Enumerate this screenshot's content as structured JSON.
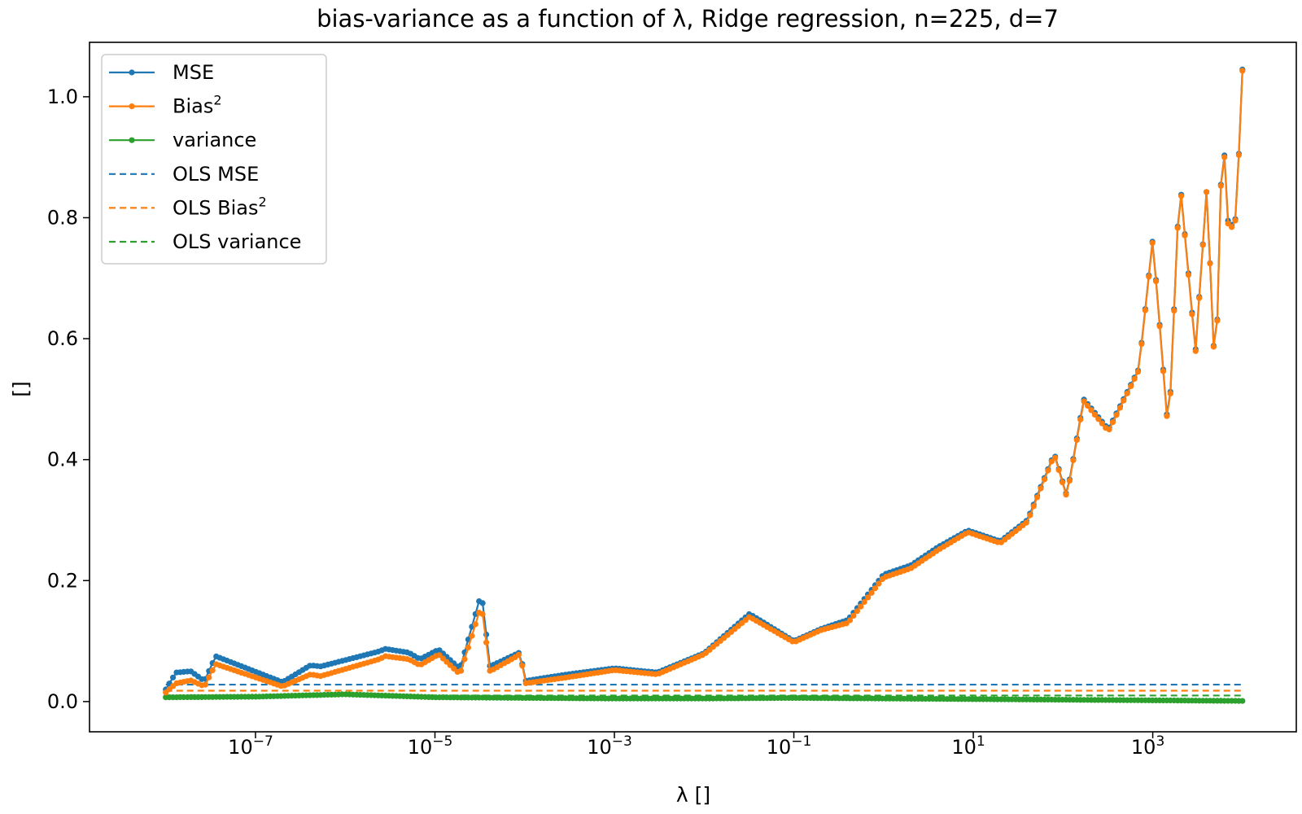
{
  "chart_data": {
    "type": "line",
    "title": "bias-variance as a function of λ, Ridge regression, n=225, d=7",
    "xlabel": "λ []",
    "ylabel": "[]",
    "xscale": "log",
    "xlim_exp": [
      -8.85,
      4.6
    ],
    "ylim": [
      -0.05,
      1.09
    ],
    "xticks": [
      {
        "base": "10",
        "exp": "−7",
        "value": 1e-07
      },
      {
        "base": "10",
        "exp": "−5",
        "value": 1e-05
      },
      {
        "base": "10",
        "exp": "−3",
        "value": 0.001
      },
      {
        "base": "10",
        "exp": "−1",
        "value": 0.1
      },
      {
        "base": "10",
        "exp": "1",
        "value": 10
      },
      {
        "base": "10",
        "exp": "3",
        "value": 1000
      }
    ],
    "yticks": [
      {
        "label": "0.0",
        "value": 0.0
      },
      {
        "label": "0.2",
        "value": 0.2
      },
      {
        "label": "0.4",
        "value": 0.4
      },
      {
        "label": "0.6",
        "value": 0.6
      },
      {
        "label": "0.8",
        "value": 0.8
      },
      {
        "label": "1.0",
        "value": 1.0
      }
    ],
    "grid": false,
    "legend_position": "top-left",
    "lambda_range": [
      1e-08,
      10000.0
    ],
    "lambda_points": 300,
    "series": [
      {
        "name": "MSE",
        "legend": "MSE",
        "color": "#1f77b4",
        "style": "line-marker",
        "lambda": [
          1e-08,
          1.3e-08,
          1.9e-08,
          2.7e-08,
          3.6e-08,
          2e-07,
          4.1e-07,
          5.3e-07,
          2.4e-06,
          2.8e-06,
          5.1e-06,
          6.8e-06,
          1.1e-05,
          1.9e-05,
          3.3e-05,
          4.1e-05,
          8.2e-05,
          9e-05,
          0.0001,
          0.0003,
          0.001,
          0.003,
          0.01,
          0.032,
          0.1,
          0.2,
          0.4,
          1,
          2,
          4,
          8.7,
          20,
          40,
          80,
          110,
          170,
          320,
          700,
          1000,
          1500,
          2000,
          3000,
          4000,
          5000,
          6000,
          7000,
          8500,
          10000
        ],
        "values": [
          0.02,
          0.048,
          0.05,
          0.034,
          0.075,
          0.032,
          0.06,
          0.058,
          0.083,
          0.087,
          0.081,
          0.07,
          0.086,
          0.054,
          0.18,
          0.058,
          0.079,
          0.082,
          0.034,
          0.045,
          0.055,
          0.048,
          0.08,
          0.145,
          0.1,
          0.12,
          0.135,
          0.21,
          0.225,
          0.255,
          0.283,
          0.265,
          0.3,
          0.41,
          0.34,
          0.5,
          0.45,
          0.55,
          0.765,
          0.44,
          0.865,
          0.58,
          0.85,
          0.52,
          0.96,
          0.78,
          0.8,
          1.045
        ]
      },
      {
        "name": "Bias²",
        "legend": "Bias",
        "legend_sup": "2",
        "color": "#ff7f0e",
        "style": "line-marker",
        "lambda": [
          1e-08,
          1.3e-08,
          1.9e-08,
          2.7e-08,
          3.6e-08,
          2e-07,
          4.1e-07,
          5.3e-07,
          2.4e-06,
          2.8e-06,
          5.1e-06,
          6.8e-06,
          1.1e-05,
          1.9e-05,
          3.3e-05,
          4.1e-05,
          8.2e-05,
          9e-05,
          0.0001,
          0.0003,
          0.001,
          0.003,
          0.01,
          0.032,
          0.1,
          0.2,
          0.4,
          1,
          2,
          4,
          8.7,
          20,
          40,
          80,
          110,
          170,
          320,
          700,
          1000,
          1500,
          2000,
          3000,
          4000,
          5000,
          6000,
          7000,
          8500,
          10000
        ],
        "values": [
          0.015,
          0.03,
          0.035,
          0.025,
          0.062,
          0.025,
          0.045,
          0.042,
          0.07,
          0.075,
          0.07,
          0.06,
          0.078,
          0.045,
          0.16,
          0.05,
          0.075,
          0.08,
          0.03,
          0.04,
          0.052,
          0.045,
          0.078,
          0.14,
          0.098,
          0.118,
          0.13,
          0.205,
          0.22,
          0.25,
          0.28,
          0.262,
          0.297,
          0.408,
          0.338,
          0.497,
          0.447,
          0.548,
          0.763,
          0.437,
          0.863,
          0.577,
          0.85,
          0.518,
          0.958,
          0.775,
          0.798,
          1.043
        ]
      },
      {
        "name": "variance",
        "legend": "variance",
        "color": "#2ca02c",
        "style": "line-marker",
        "lambda": [
          1e-08,
          1e-07,
          1e-06,
          1e-05,
          0.0001,
          0.001,
          0.01,
          0.1,
          1,
          10,
          100,
          1000,
          10000
        ],
        "values": [
          0.007,
          0.008,
          0.012,
          0.007,
          0.006,
          0.005,
          0.005,
          0.006,
          0.005,
          0.004,
          0.003,
          0.002,
          0.001
        ]
      },
      {
        "name": "OLS MSE",
        "legend": "OLS MSE",
        "color": "#1f77b4",
        "style": "dashed",
        "value": 0.028
      },
      {
        "name": "OLS Bias²",
        "legend": "OLS Bias",
        "legend_sup": "2",
        "color": "#ff7f0e",
        "style": "dashed",
        "value": 0.018
      },
      {
        "name": "OLS variance",
        "legend": "OLS variance",
        "color": "#2ca02c",
        "style": "dashed",
        "value": 0.01
      }
    ]
  }
}
